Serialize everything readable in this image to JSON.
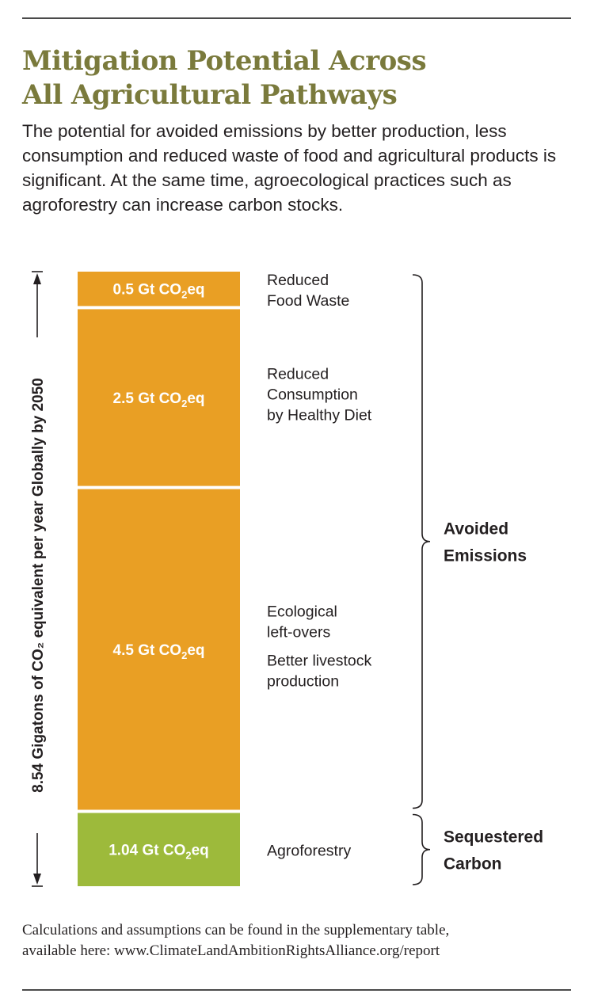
{
  "title_line1": "Mitigation Potential Across",
  "title_line2": "All Agricultural Pathways",
  "subtitle": "The potential for avoided emissions by better production, less consumption and reduced waste of food and agricultural products is significant. At the same time, agroecological practices such as agroforestry can increase carbon stocks.",
  "footnote_line1": "Calculations and assumptions can be found in the supplementary table,",
  "footnote_line2": "available here: www.ClimateLandAmbitionRightsAlliance.org/report",
  "colors": {
    "avoided": "#e99f24",
    "sequestered": "#9dba3b",
    "title": "#7a7a3c"
  },
  "chart_data": {
    "type": "bar",
    "stacked": true,
    "total_label": "8.54 Gigatons of CO₂ equivalent per year Globally by 2050",
    "total": 8.54,
    "unit": "Gt CO2eq",
    "segments": [
      {
        "value": 0.5,
        "value_label": "0.5 Gt CO",
        "label_lines": [
          "Reduced",
          "Food Waste"
        ],
        "group": "avoided"
      },
      {
        "value": 2.5,
        "value_label": "2.5 Gt CO",
        "label_lines": [
          "Reduced",
          "Consumption",
          "by Healthy Diet"
        ],
        "group": "avoided"
      },
      {
        "value": 4.5,
        "value_label": "4.5 Gt CO",
        "label_lines": [
          "Ecological",
          "left-overs",
          "Better livestock",
          "production"
        ],
        "group": "avoided"
      },
      {
        "value": 1.04,
        "value_label": "1.04 Gt CO",
        "label_lines": [
          "Agroforestry"
        ],
        "group": "sequestered"
      }
    ],
    "unit_sub": "2",
    "unit_suffix": "eq",
    "groups": [
      {
        "key": "avoided",
        "label_lines": [
          "Avoided",
          "Emissions"
        ]
      },
      {
        "key": "sequestered",
        "label_lines": [
          "Sequestered",
          "Carbon"
        ]
      }
    ]
  }
}
